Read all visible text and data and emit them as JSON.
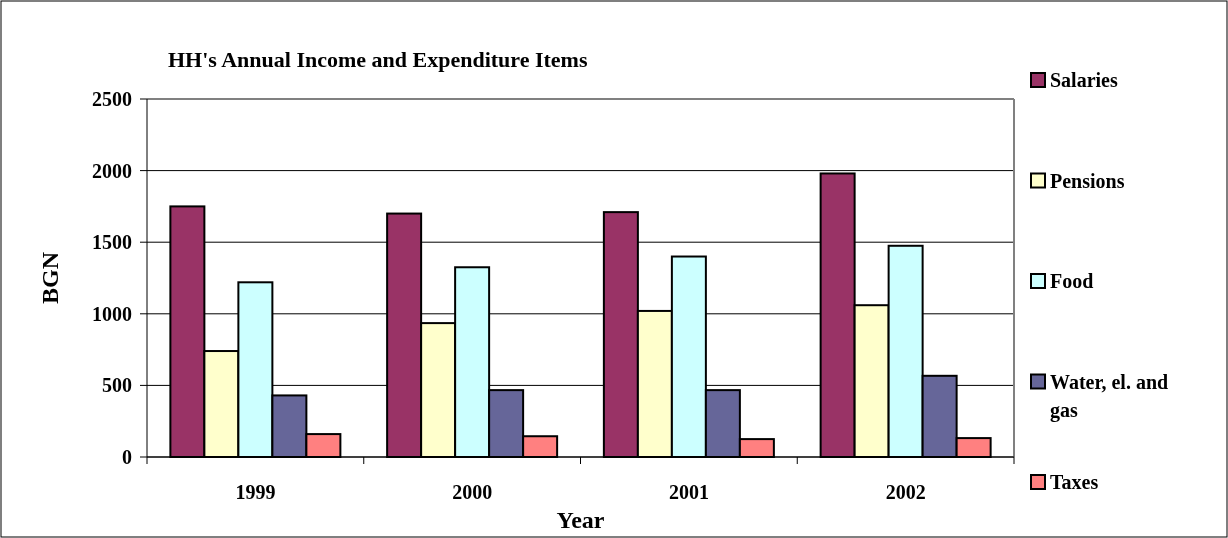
{
  "chart_data": {
    "type": "bar",
    "title": "HH's Annual Income and Expenditure Items",
    "xlabel": "Year",
    "ylabel": "BGN",
    "categories": [
      "1999",
      "2000",
      "2001",
      "2002"
    ],
    "series": [
      {
        "name": "Salaries",
        "color": "#993366",
        "values": [
          1750,
          1700,
          1710,
          1980
        ]
      },
      {
        "name": "Pensions",
        "color": "#ffffcc",
        "values": [
          740,
          935,
          1020,
          1060
        ]
      },
      {
        "name": "Food",
        "color": "#ccffff",
        "values": [
          1220,
          1325,
          1400,
          1475
        ]
      },
      {
        "name": "Water, el. and gas",
        "color": "#666699",
        "values": [
          430,
          467,
          467,
          567
        ]
      },
      {
        "name": "Taxes",
        "color": "#ff8080",
        "values": [
          160,
          145,
          125,
          132
        ]
      }
    ],
    "ylim": [
      0,
      2500
    ],
    "yticks": [
      0,
      500,
      1000,
      1500,
      2000,
      2500
    ],
    "grid": "y",
    "legend": "right"
  }
}
